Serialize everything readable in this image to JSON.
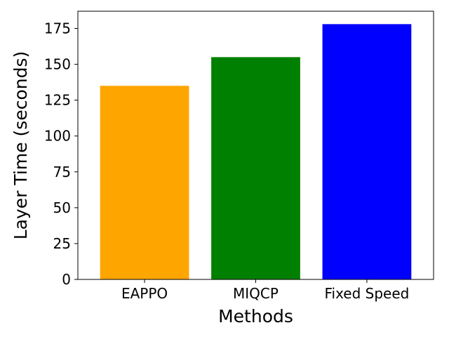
{
  "chart_data": {
    "type": "bar",
    "categories": [
      "EAPPO",
      "MIQCP",
      "Fixed Speed"
    ],
    "values": [
      135,
      155,
      178
    ],
    "colors": [
      "#ffa500",
      "#008000",
      "#0000ff"
    ],
    "title": "",
    "xlabel": "Methods",
    "ylabel": "Layer Time (seconds)",
    "ylim": [
      0,
      187
    ],
    "yticks": [
      0,
      25,
      50,
      75,
      100,
      125,
      150,
      175
    ],
    "grid": false
  }
}
